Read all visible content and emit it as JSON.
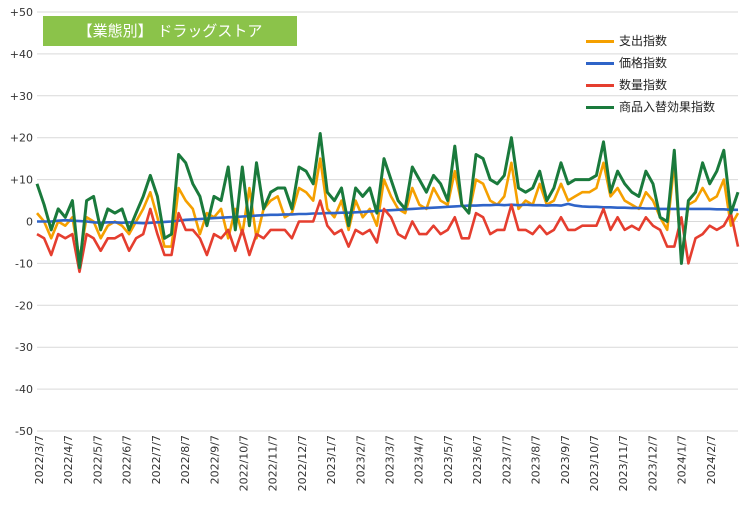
{
  "chart_data": {
    "type": "line",
    "title": "【業態別】 ドラッグストア",
    "ylim": [
      -50,
      50
    ],
    "ytick_labels": [
      "+50",
      "+40",
      "+30",
      "+20",
      "+10",
      "0",
      "-10",
      "-20",
      "-30",
      "-40",
      "-50"
    ],
    "ytick_values": [
      50,
      40,
      30,
      20,
      10,
      0,
      -10,
      -20,
      -30,
      -40,
      -50
    ],
    "x_labels": [
      "2022/3/7",
      "2022/4/7",
      "2022/5/7",
      "2022/6/7",
      "2022/7/7",
      "2022/8/7",
      "2022/9/7",
      "2022/10/7",
      "2022/11/7",
      "2022/12/7",
      "2023/1/7",
      "2023/2/7",
      "2023/3/7",
      "2023/4/7",
      "2023/5/7",
      "2023/6/7",
      "2023/7/7",
      "2023/8/7",
      "2023/9/7",
      "2023/10/7",
      "2023/11/7",
      "2023/12/7",
      "2024/1/7",
      "2024/2/7"
    ],
    "legend": "top-right",
    "grid": "horizontal",
    "series": [
      {
        "name": "支出指数",
        "color": "#f5a000",
        "values": [
          2,
          0,
          -4,
          0,
          -1,
          1,
          -9,
          1,
          0,
          -4,
          -1,
          0,
          -1,
          -3,
          0,
          3,
          7,
          1,
          -6,
          -6,
          8,
          5,
          3,
          -3,
          2,
          1,
          3,
          -4,
          3,
          -3,
          8,
          -4,
          3,
          5,
          6,
          1,
          2,
          8,
          7,
          5,
          15,
          3,
          1,
          5,
          -2,
          5,
          1,
          3,
          -1,
          10,
          6,
          3,
          2,
          8,
          4,
          3,
          8,
          5,
          4,
          12,
          4,
          2,
          10,
          9,
          5,
          4,
          6,
          14,
          3,
          5,
          4,
          9,
          4,
          5,
          9,
          5,
          6,
          7,
          7,
          8,
          14,
          6,
          8,
          5,
          4,
          3,
          7,
          5,
          1,
          -2,
          14,
          -9,
          4,
          5,
          8,
          5,
          6,
          10,
          -1,
          2
        ]
      },
      {
        "name": "価格指数",
        "color": "#2f64c8",
        "values": [
          0,
          0,
          0,
          0.2,
          0.3,
          0.2,
          0.1,
          0,
          -0.2,
          -0.3,
          -0.2,
          -0.2,
          -0.3,
          -0.2,
          -0.3,
          -0.4,
          -0.3,
          -0.2,
          -0.1,
          0,
          0.2,
          0.4,
          0.5,
          0.6,
          0.7,
          0.8,
          0.9,
          1,
          1.1,
          1.2,
          1.3,
          1.4,
          1.5,
          1.6,
          1.6,
          1.7,
          1.7,
          1.8,
          1.8,
          1.9,
          1.9,
          2,
          2,
          2.1,
          2.1,
          2.2,
          2.3,
          2.4,
          2.5,
          2.6,
          2.7,
          2.8,
          2.9,
          3,
          3.1,
          3.2,
          3.3,
          3.4,
          3.5,
          3.6,
          3.7,
          3.8,
          3.8,
          3.9,
          3.9,
          4,
          3.9,
          4,
          3.9,
          4,
          3.9,
          3.9,
          3.8,
          3.9,
          3.8,
          4.2,
          3.8,
          3.6,
          3.5,
          3.5,
          3.4,
          3.4,
          3.3,
          3.3,
          3.2,
          3.2,
          3.1,
          3.1,
          3,
          3,
          3,
          3,
          3,
          3,
          3,
          3,
          2.9,
          2.9,
          2.8,
          2.8
        ]
      },
      {
        "name": "数量指数",
        "color": "#e53e2f",
        "values": [
          -3,
          -4,
          -8,
          -3,
          -4,
          -3,
          -12,
          -3,
          -4,
          -7,
          -4,
          -4,
          -3,
          -7,
          -4,
          -3,
          3,
          -3,
          -8,
          -8,
          2,
          -2,
          -2,
          -4,
          -8,
          -3,
          -4,
          -2,
          -7,
          -2,
          -8,
          -3,
          -4,
          -2,
          -2,
          -2,
          -4,
          0,
          0,
          0,
          5,
          -1,
          -3,
          -2,
          -6,
          -2,
          -3,
          -2,
          -5,
          3,
          1,
          -3,
          -4,
          0,
          -3,
          -3,
          -1,
          -3,
          -2,
          1,
          -4,
          -4,
          2,
          1,
          -3,
          -2,
          -2,
          4,
          -2,
          -2,
          -3,
          -1,
          -3,
          -2,
          1,
          -2,
          -2,
          -1,
          -1,
          -1,
          3,
          -2,
          1,
          -2,
          -1,
          -2,
          1,
          -1,
          -2,
          -6,
          -6,
          1,
          -10,
          -4,
          -3,
          -1,
          -2,
          -1,
          2,
          -6
        ]
      },
      {
        "name": "商品入替効果指数",
        "color": "#1a7a3c",
        "values": [
          9,
          4,
          -2,
          3,
          1,
          5,
          -11,
          5,
          6,
          -2,
          3,
          2,
          3,
          -2,
          2,
          6,
          11,
          6,
          -4,
          -3,
          16,
          14,
          9,
          6,
          -1,
          6,
          5,
          13,
          -2,
          13,
          -1,
          14,
          3,
          7,
          8,
          8,
          3,
          13,
          12,
          9,
          21,
          7,
          5,
          8,
          -1,
          8,
          6,
          8,
          2,
          15,
          10,
          5,
          3,
          13,
          10,
          7,
          11,
          9,
          5,
          18,
          4,
          2,
          16,
          15,
          10,
          9,
          11,
          20,
          8,
          7,
          8,
          12,
          5,
          8,
          14,
          9,
          10,
          10,
          10,
          11,
          19,
          7,
          12,
          9,
          7,
          6,
          12,
          9,
          1,
          0,
          17,
          -10,
          5,
          7,
          14,
          9,
          12,
          17,
          2,
          7
        ]
      }
    ]
  }
}
